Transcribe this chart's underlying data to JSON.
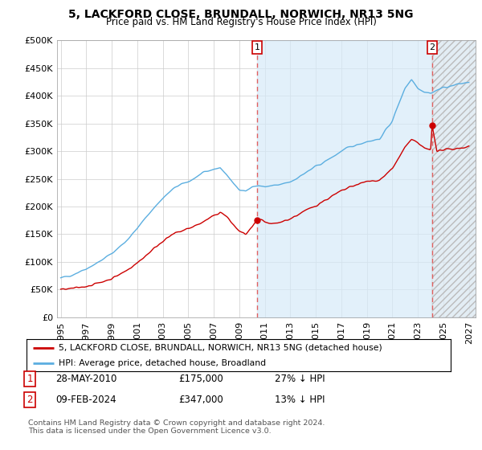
{
  "title": "5, LACKFORD CLOSE, BRUNDALL, NORWICH, NR13 5NG",
  "subtitle": "Price paid vs. HM Land Registry's House Price Index (HPI)",
  "legend_line1": "5, LACKFORD CLOSE, BRUNDALL, NORWICH, NR13 5NG (detached house)",
  "legend_line2": "HPI: Average price, detached house, Broadland",
  "footnote": "Contains HM Land Registry data © Crown copyright and database right 2024.\nThis data is licensed under the Open Government Licence v3.0.",
  "point1_label": "1",
  "point1_date": "28-MAY-2010",
  "point1_price": "£175,000",
  "point1_hpi": "27% ↓ HPI",
  "point2_label": "2",
  "point2_date": "09-FEB-2024",
  "point2_price": "£347,000",
  "point2_hpi": "13% ↓ HPI",
  "hpi_color": "#5baee0",
  "sale_color": "#cc0000",
  "vline_color": "#e06060",
  "fill_color": "#d6eaf8",
  "hatch_color": "#aaaaaa",
  "background_color": "#ffffff",
  "grid_color": "#cccccc",
  "ylim": [
    0,
    500000
  ],
  "yticks": [
    0,
    50000,
    100000,
    150000,
    200000,
    250000,
    300000,
    350000,
    400000,
    450000,
    500000
  ],
  "ytick_labels": [
    "£0",
    "£50K",
    "£100K",
    "£150K",
    "£200K",
    "£250K",
    "£300K",
    "£350K",
    "£400K",
    "£450K",
    "£500K"
  ],
  "xstart_year": 1995,
  "xend_year": 2027,
  "xtick_years": [
    1995,
    1997,
    1999,
    2001,
    2003,
    2005,
    2007,
    2009,
    2011,
    2013,
    2015,
    2017,
    2019,
    2021,
    2023,
    2025,
    2027
  ],
  "sale1_x": 2010.4,
  "sale1_y": 175000,
  "sale2_x": 2024.12,
  "sale2_y": 347000
}
